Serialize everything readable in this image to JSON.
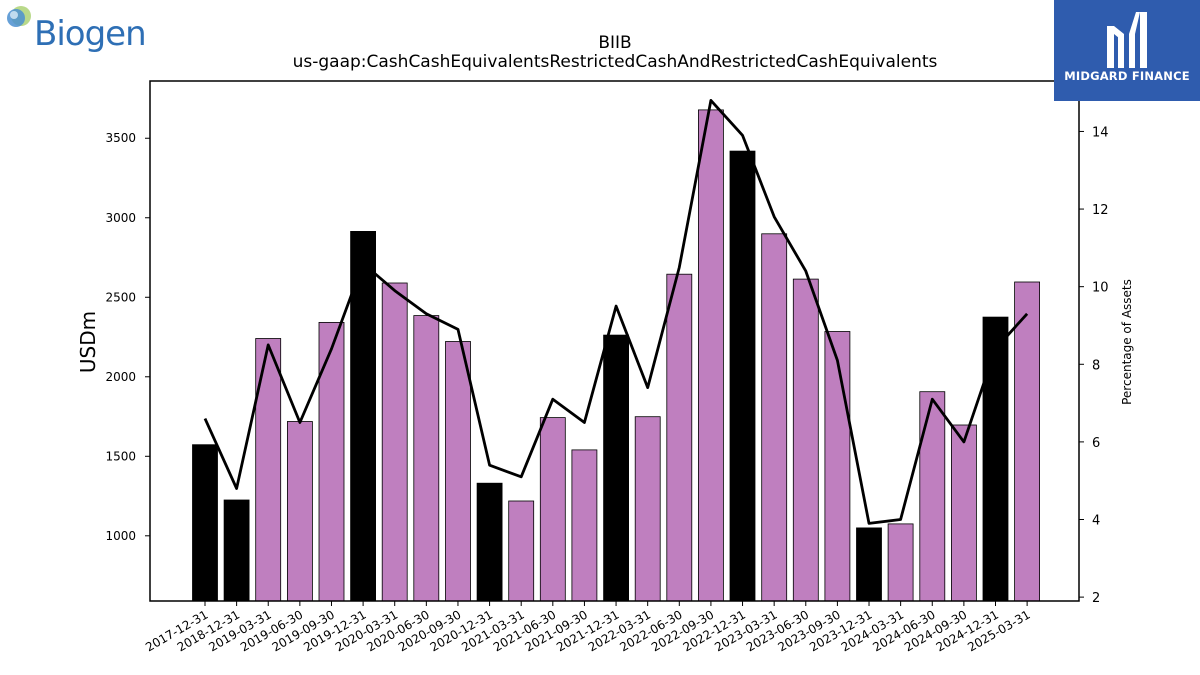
{
  "header": {
    "logo_text": "Biogen",
    "watermark_text": "MIDGARD FINANCE"
  },
  "colors": {
    "bar_annual": "#000000",
    "bar_quarterly": "#bf7fbf",
    "line": "#000000",
    "watermark_bg": "#2f5cae",
    "logo_text": "#2e6fb5"
  },
  "chart_data": {
    "type": "bar",
    "title": "BIIB",
    "subtitle": "us-gaap:CashCashEquivalentsRestrictedCashAndRestrictedCashEquivalents",
    "ylabel": "USDm",
    "y2label": "Percentage of Assets",
    "ylim": [
      590,
      3860
    ],
    "y2lim": [
      1.9,
      15.3
    ],
    "yticks": [
      1000,
      1500,
      2000,
      2500,
      3000,
      3500
    ],
    "y2ticks": [
      2,
      4,
      6,
      8,
      10,
      12,
      14
    ],
    "grid": false,
    "categories": [
      "2017-12-31",
      "2018-12-31",
      "2019-03-31",
      "2019-06-30",
      "2019-09-30",
      "2019-12-31",
      "2020-03-31",
      "2020-06-30",
      "2020-09-30",
      "2020-12-31",
      "2021-03-31",
      "2021-06-30",
      "2021-09-30",
      "2021-12-31",
      "2022-03-31",
      "2022-06-30",
      "2022-09-30",
      "2022-12-31",
      "2023-03-31",
      "2023-06-30",
      "2023-09-30",
      "2023-12-31",
      "2024-03-31",
      "2024-06-30",
      "2024-09-30",
      "2024-12-31",
      "2025-03-31"
    ],
    "series": [
      {
        "type": "bar",
        "values": [
          1573,
          1225,
          2241,
          1719,
          2342,
          2914,
          2590,
          2385,
          2222,
          1331,
          1219,
          1743,
          1540,
          2262,
          1749,
          2645,
          3678,
          3419,
          2899,
          2614,
          2285,
          1050,
          1075,
          1906,
          1697,
          2375,
          2596
        ],
        "annual": [
          true,
          true,
          false,
          false,
          false,
          true,
          false,
          false,
          false,
          true,
          false,
          false,
          false,
          true,
          false,
          false,
          false,
          true,
          false,
          false,
          false,
          true,
          false,
          false,
          false,
          true,
          false
        ]
      },
      {
        "type": "line",
        "axis": "right",
        "values": [
          6.6,
          4.8,
          8.5,
          6.5,
          8.4,
          10.6,
          9.9,
          9.3,
          8.9,
          5.4,
          5.1,
          7.1,
          6.5,
          9.5,
          7.4,
          10.5,
          14.8,
          13.9,
          11.8,
          10.4,
          8.1,
          3.9,
          4.0,
          7.1,
          6.0,
          8.4,
          9.3
        ]
      }
    ]
  }
}
